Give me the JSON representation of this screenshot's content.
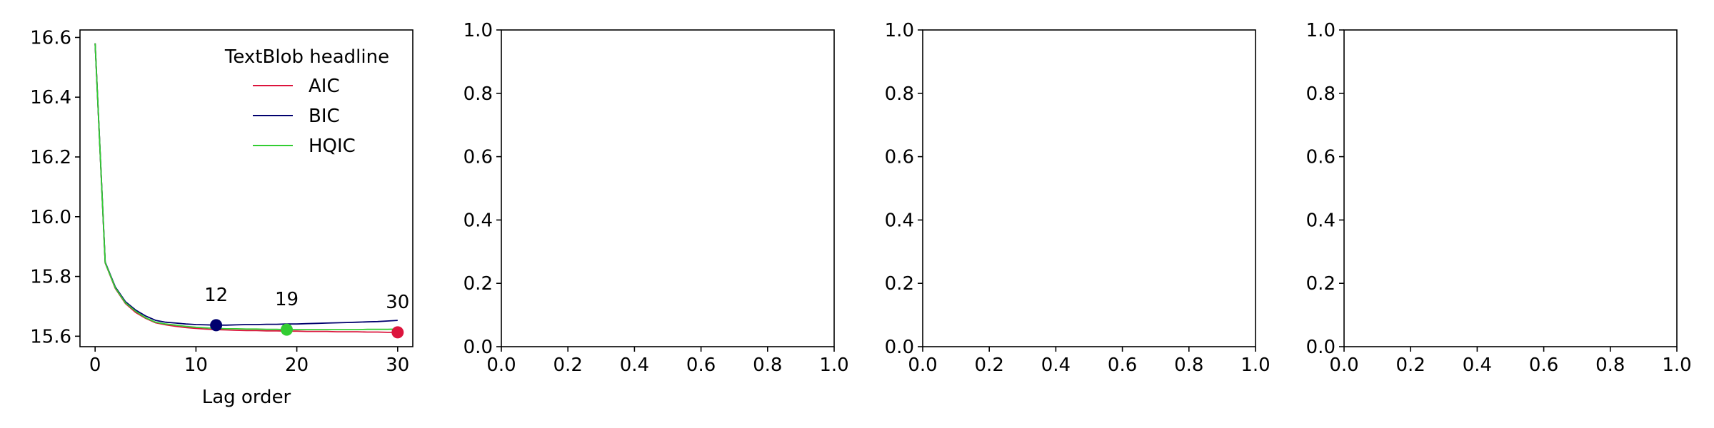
{
  "chart_data": [
    {
      "type": "line",
      "xlabel": "Lag order",
      "ylabel": "",
      "xlim": [
        -1.5,
        31.5
      ],
      "ylim": [
        15.565,
        16.625
      ],
      "xticks": [
        0,
        10,
        20,
        30
      ],
      "xtick_labels": [
        "0",
        "10",
        "20",
        "30"
      ],
      "yticks": [
        15.6,
        15.8,
        16.0,
        16.2,
        16.4,
        16.6
      ],
      "ytick_labels": [
        "15.6",
        "15.8",
        "16.0",
        "16.2",
        "16.4",
        "16.6"
      ],
      "grid": false,
      "legend": {
        "title": "TextBlob headline",
        "placement": "top-right"
      },
      "x": [
        0,
        1,
        2,
        3,
        4,
        5,
        6,
        7,
        8,
        9,
        10,
        11,
        12,
        13,
        14,
        15,
        16,
        17,
        18,
        19,
        20,
        21,
        22,
        23,
        24,
        25,
        26,
        27,
        28,
        29,
        30
      ],
      "series": [
        {
          "name": "AIC",
          "color": "#dc143c",
          "values": [
            16.58,
            15.845,
            15.76,
            15.71,
            15.68,
            15.66,
            15.645,
            15.638,
            15.633,
            15.629,
            15.626,
            15.624,
            15.622,
            15.621,
            15.62,
            15.619,
            15.619,
            15.618,
            15.618,
            15.617,
            15.617,
            15.616,
            15.616,
            15.616,
            15.615,
            15.615,
            15.615,
            15.614,
            15.614,
            15.613,
            15.613
          ]
        },
        {
          "name": "BIC",
          "color": "#00006e",
          "values": [
            16.58,
            15.848,
            15.765,
            15.716,
            15.688,
            15.668,
            15.653,
            15.647,
            15.644,
            15.641,
            15.639,
            15.638,
            15.637,
            15.637,
            15.638,
            15.639,
            15.639,
            15.64,
            15.64,
            15.641,
            15.641,
            15.642,
            15.643,
            15.644,
            15.645,
            15.646,
            15.647,
            15.648,
            15.649,
            15.651,
            15.653
          ]
        },
        {
          "name": "HQIC",
          "color": "#32cd32",
          "values": [
            16.58,
            15.846,
            15.762,
            15.712,
            15.684,
            15.662,
            15.647,
            15.641,
            15.637,
            15.633,
            15.63,
            15.628,
            15.626,
            15.625,
            15.625,
            15.624,
            15.624,
            15.623,
            15.623,
            15.622,
            15.622,
            15.622,
            15.622,
            15.622,
            15.622,
            15.622,
            15.622,
            15.623,
            15.623,
            15.623,
            15.624
          ]
        }
      ],
      "annotations": [
        {
          "label": "12",
          "x": 12,
          "y": 15.637,
          "color": "#00006e"
        },
        {
          "label": "19",
          "x": 19,
          "y": 15.622,
          "color": "#32cd32"
        },
        {
          "label": "30",
          "x": 30,
          "y": 15.613,
          "color": "#dc143c"
        }
      ]
    },
    {
      "type": "line",
      "xlim": [
        0,
        1
      ],
      "ylim": [
        0,
        1
      ],
      "xticks": [
        0,
        0.2,
        0.4,
        0.6,
        0.8,
        1.0
      ],
      "xtick_labels": [
        "0.0",
        "0.2",
        "0.4",
        "0.6",
        "0.8",
        "1.0"
      ],
      "yticks": [
        0,
        0.2,
        0.4,
        0.6,
        0.8,
        1.0
      ],
      "ytick_labels": [
        "0.0",
        "0.2",
        "0.4",
        "0.6",
        "0.8",
        "1.0"
      ],
      "series": []
    },
    {
      "type": "line",
      "xlim": [
        0,
        1
      ],
      "ylim": [
        0,
        1
      ],
      "xticks": [
        0,
        0.2,
        0.4,
        0.6,
        0.8,
        1.0
      ],
      "xtick_labels": [
        "0.0",
        "0.2",
        "0.4",
        "0.6",
        "0.8",
        "1.0"
      ],
      "yticks": [
        0,
        0.2,
        0.4,
        0.6,
        0.8,
        1.0
      ],
      "ytick_labels": [
        "0.0",
        "0.2",
        "0.4",
        "0.6",
        "0.8",
        "1.0"
      ],
      "series": []
    },
    {
      "type": "line",
      "xlim": [
        0,
        1
      ],
      "ylim": [
        0,
        1
      ],
      "xticks": [
        0,
        0.2,
        0.4,
        0.6,
        0.8,
        1.0
      ],
      "xtick_labels": [
        "0.0",
        "0.2",
        "0.4",
        "0.6",
        "0.8",
        "1.0"
      ],
      "yticks": [
        0,
        0.2,
        0.4,
        0.6,
        0.8,
        1.0
      ],
      "ytick_labels": [
        "0.0",
        "0.2",
        "0.4",
        "0.6",
        "0.8",
        "1.0"
      ],
      "series": []
    }
  ]
}
